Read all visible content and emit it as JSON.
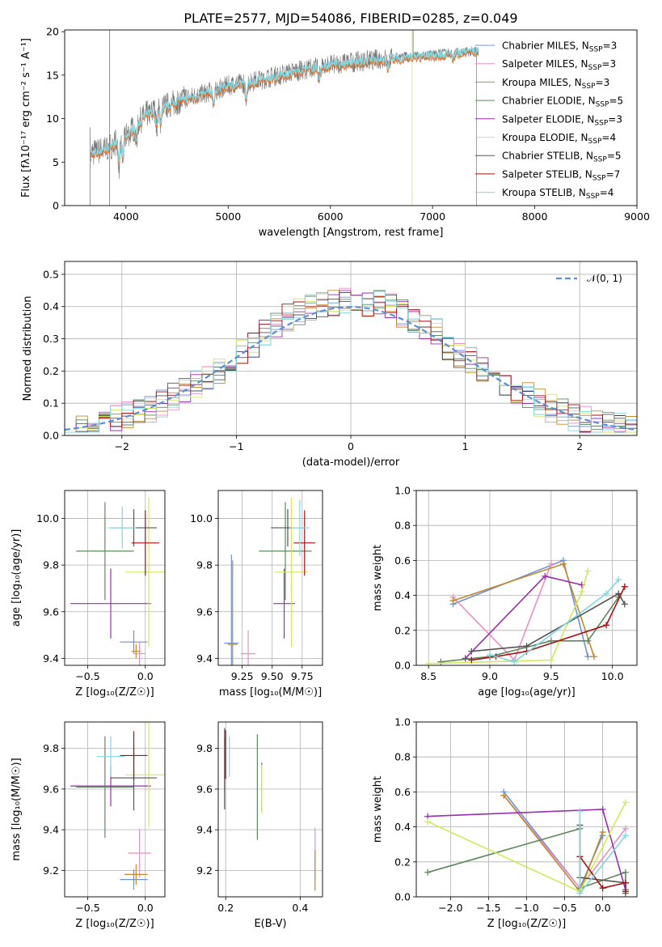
{
  "title": "PLATE=2577, MJD=54086, FIBERID=0285, z=0.049",
  "legend_series": [
    {
      "name": "Chabrier MILES, N",
      "sub": "SSP",
      "suffix": "=3",
      "color": "#6b93d6"
    },
    {
      "name": "Salpeter MILES, N",
      "sub": "SSP",
      "suffix": "=3",
      "color": "#e88fc8"
    },
    {
      "name": "Kroupa MILES, N",
      "sub": "SSP",
      "suffix": "=3",
      "color": "#c08a30"
    },
    {
      "name": "Chabrier ELODIE, N",
      "sub": "SSP",
      "suffix": "=5",
      "color": "#5c8a5c"
    },
    {
      "name": "Salpeter ELODIE, N",
      "sub": "SSP",
      "suffix": "=3",
      "color": "#9a2fb0"
    },
    {
      "name": "Kroupa ELODIE, N",
      "sub": "SSP",
      "suffix": "=4",
      "color": "#d4e85a"
    },
    {
      "name": "Chabrier STELIB, N",
      "sub": "SSP",
      "suffix": "=5",
      "color": "#555555"
    },
    {
      "name": "Salpeter STELIB, N",
      "sub": "SSP",
      "suffix": "=7",
      "color": "#aa1111"
    },
    {
      "name": "Kroupa STELIB, N",
      "sub": "SSP",
      "suffix": "=4",
      "color": "#80d8e0"
    }
  ],
  "chart_data": [
    {
      "id": "spectrum",
      "type": "line",
      "xlabel": "wavelength [Angstrom, rest frame]",
      "ylabel": "Flux [fλ10⁻¹⁷ erg cm⁻² s⁻¹ A⁻¹]",
      "xlim": [
        3400,
        9000
      ],
      "ylim": [
        0,
        20.2
      ],
      "xticks": [
        "4000",
        "5000",
        "6000",
        "7000",
        "8000",
        "9000"
      ],
      "yticks": [
        "0",
        "5",
        "10",
        "15",
        "20"
      ],
      "data_color": "#777777",
      "model_color": "#80d8e0",
      "model2_color": "#e07030",
      "continuum": {
        "x": [
          3650,
          3800,
          4000,
          4200,
          4500,
          4800,
          5000,
          5200,
          5500,
          5800,
          6000,
          6300,
          6600,
          6900,
          7200,
          7450
        ],
        "y": [
          6.0,
          6.5,
          8.0,
          10.5,
          12.0,
          13.0,
          13.8,
          14.2,
          15.0,
          15.8,
          16.2,
          16.6,
          17.0,
          17.2,
          17.6,
          17.8
        ]
      },
      "data_xmax": 7450,
      "model_xmax": 7430
    },
    {
      "id": "residuals",
      "type": "histogram",
      "xlabel": "(data-model)/error",
      "ylabel": "Normed distribution",
      "xlim": [
        -2.5,
        2.5
      ],
      "ylim": [
        0,
        0.54
      ],
      "xticks": [
        "−2",
        "−1",
        "0",
        "1",
        "2"
      ],
      "yticks": [
        "0.0",
        "0.1",
        "0.2",
        "0.3",
        "0.4",
        "0.5"
      ],
      "bin_width": 0.1,
      "legend": "𝒩(0, 1)",
      "gaussian_color": "#5b8fd9"
    },
    {
      "id": "age_vs_Z",
      "type": "errorbar",
      "xlabel": "Z [log₁₀(Z/Z☉)]",
      "ylabel": "age  [log₁₀(age/yr)]",
      "xlim": [
        -0.7,
        0.17
      ],
      "ylim": [
        9.37,
        10.12
      ],
      "xticks": [
        "−0.5",
        "0.0"
      ],
      "yticks": [
        "9.4",
        "9.6",
        "9.8",
        "10.0"
      ],
      "points": [
        {
          "x": -0.1,
          "y": 9.47,
          "xerr": 0.12,
          "yerr": 0.05,
          "c": 0
        },
        {
          "x": -0.05,
          "y": 9.42,
          "xerr": 0.05,
          "yerr": 0.05,
          "c": 1
        },
        {
          "x": -0.08,
          "y": 9.43,
          "xerr": 0.04,
          "yerr": 0.03,
          "c": 2
        },
        {
          "x": -0.35,
          "y": 9.86,
          "xerr": 0.25,
          "yerr": 0.21,
          "c": 3
        },
        {
          "x": -0.3,
          "y": 9.635,
          "xerr": 0.35,
          "yerr": 0.15,
          "c": 4
        },
        {
          "x": 0.03,
          "y": 9.77,
          "xerr": 0.2,
          "yerr": 0.32,
          "c": 5
        },
        {
          "x": -0.1,
          "y": 9.96,
          "xerr": 0.2,
          "yerr": 0.08,
          "c": 6
        },
        {
          "x": 0.0,
          "y": 9.895,
          "xerr": 0.12,
          "yerr": 0.14,
          "c": 7
        },
        {
          "x": -0.2,
          "y": 9.96,
          "xerr": 0.12,
          "yerr": 0.09,
          "c": 8
        }
      ]
    },
    {
      "id": "age_vs_mass",
      "type": "errorbar",
      "xlabel": "mass [log₁₀(M/M☉)]",
      "ylabel": "",
      "xlim": [
        9.05,
        9.92
      ],
      "ylim": [
        9.37,
        10.12
      ],
      "xticks": [
        "9.25",
        "9.50",
        "9.75"
      ],
      "yticks": [
        "9.4",
        "9.6",
        "9.8",
        "10.0"
      ],
      "points": [
        {
          "x": 9.16,
          "y": 9.465,
          "xerr": 0.06,
          "yerr": 0.38,
          "c": 0
        },
        {
          "x": 9.3,
          "y": 9.42,
          "xerr": 0.06,
          "yerr": 0.1,
          "c": 1
        },
        {
          "x": 9.17,
          "y": 9.46,
          "xerr": 0.04,
          "yerr": 0.36,
          "c": 2
        },
        {
          "x": 9.61,
          "y": 9.86,
          "xerr": 0.22,
          "yerr": 0.21,
          "c": 3
        },
        {
          "x": 9.6,
          "y": 9.635,
          "xerr": 0.09,
          "yerr": 0.15,
          "c": 4
        },
        {
          "x": 9.66,
          "y": 9.77,
          "xerr": 0.14,
          "yerr": 0.32,
          "c": 5
        },
        {
          "x": 9.63,
          "y": 9.96,
          "xerr": 0.14,
          "yerr": 0.08,
          "c": 6
        },
        {
          "x": 9.77,
          "y": 9.895,
          "xerr": 0.09,
          "yerr": 0.14,
          "c": 7
        },
        {
          "x": 9.73,
          "y": 9.96,
          "xerr": 0.08,
          "yerr": 0.12,
          "c": 8
        }
      ]
    },
    {
      "id": "massweight_vs_age",
      "type": "line",
      "xlabel": "age  [log₁₀(age/yr)]",
      "ylabel": "mass weight",
      "xlim": [
        8.4,
        10.2
      ],
      "ylim": [
        0,
        1
      ],
      "xticks": [
        "8.5",
        "9.0",
        "9.5",
        "10.0"
      ],
      "yticks": [
        "0.0",
        "0.2",
        "0.4",
        "0.6",
        "0.8",
        "1.0"
      ],
      "series": [
        {
          "c": 0,
          "x": [
            8.7,
            9.6,
            9.8
          ],
          "y": [
            0.35,
            0.6,
            0.05
          ]
        },
        {
          "c": 1,
          "x": [
            8.7,
            9.2,
            9.5
          ],
          "y": [
            0.39,
            0.03,
            0.58
          ]
        },
        {
          "c": 2,
          "x": [
            8.7,
            9.6,
            9.85
          ],
          "y": [
            0.37,
            0.58,
            0.05
          ]
        },
        {
          "c": 3,
          "x": [
            8.6,
            9.0,
            9.5,
            9.8,
            10.05
          ],
          "y": [
            0.02,
            0.05,
            0.14,
            0.14,
            0.39
          ]
        },
        {
          "c": 4,
          "x": [
            8.8,
            9.45,
            9.75
          ],
          "y": [
            0.04,
            0.51,
            0.46
          ]
        },
        {
          "c": 5,
          "x": [
            8.5,
            9.5,
            9.75,
            9.8
          ],
          "y": [
            0.01,
            0.03,
            0.42,
            0.54
          ]
        },
        {
          "c": 6,
          "x": [
            8.85,
            9.3,
            10.05,
            10.1
          ],
          "y": [
            0.08,
            0.11,
            0.41,
            0.35
          ]
        },
        {
          "c": 7,
          "x": [
            8.85,
            9.05,
            9.3,
            9.95,
            10.1
          ],
          "y": [
            0.03,
            0.05,
            0.08,
            0.23,
            0.45
          ]
        },
        {
          "c": 8,
          "x": [
            9.0,
            9.2,
            9.95,
            10.05
          ],
          "y": [
            0.06,
            0.02,
            0.41,
            0.49
          ]
        }
      ]
    },
    {
      "id": "mass_vs_Z",
      "type": "errorbar",
      "xlabel": "Z [log₁₀(Z/Z☉)]",
      "ylabel": "mass [log₁₀(M/M☉)]",
      "xlim": [
        -0.7,
        0.17
      ],
      "ylim": [
        9.07,
        9.93
      ],
      "xticks": [
        "−0.5",
        "0.0"
      ],
      "yticks": [
        "9.2",
        "9.4",
        "9.6",
        "9.8"
      ],
      "points": [
        {
          "x": -0.1,
          "y": 9.155,
          "xerr": 0.12,
          "yerr": 0.05,
          "c": 0
        },
        {
          "x": -0.05,
          "y": 9.285,
          "xerr": 0.1,
          "yerr": 0.12,
          "c": 1
        },
        {
          "x": -0.08,
          "y": 9.18,
          "xerr": 0.1,
          "yerr": 0.05,
          "c": 2
        },
        {
          "x": -0.35,
          "y": 9.61,
          "xerr": 0.25,
          "yerr": 0.25,
          "c": 3
        },
        {
          "x": -0.3,
          "y": 9.615,
          "xerr": 0.35,
          "yerr": 0.1,
          "c": 4
        },
        {
          "x": 0.03,
          "y": 9.67,
          "xerr": 0.2,
          "yerr": 0.26,
          "c": 5
        },
        {
          "x": -0.1,
          "y": 9.655,
          "xerr": 0.2,
          "yerr": 0.16,
          "c": 6
        },
        {
          "x": -0.1,
          "y": 9.765,
          "xerr": 0.12,
          "yerr": 0.12,
          "c": 7
        },
        {
          "x": -0.3,
          "y": 9.76,
          "xerr": 0.12,
          "yerr": 0.1,
          "c": 8
        }
      ]
    },
    {
      "id": "mass_vs_EBV",
      "type": "errorbar",
      "xlabel": "E(B-V)",
      "ylabel": "",
      "xlim": [
        0.18,
        0.46
      ],
      "ylim": [
        9.07,
        9.93
      ],
      "xticks": [
        "0.2",
        "0.4"
      ],
      "yticks": [
        "9.2",
        "9.4",
        "9.6",
        "9.8"
      ],
      "points": [
        {
          "x": 0.197,
          "y": 9.72,
          "xerr": 0,
          "yerr": 0.13,
          "c": 0
        },
        {
          "x": 0.44,
          "y": 9.28,
          "xerr": 0,
          "yerr": 0.13,
          "c": 1
        },
        {
          "x": 0.44,
          "y": 9.2,
          "xerr": 0,
          "yerr": 0.1,
          "c": 2
        },
        {
          "x": 0.285,
          "y": 9.61,
          "xerr": 0,
          "yerr": 0.26,
          "c": 3
        },
        {
          "x": 0.297,
          "y": 9.61,
          "xerr": 0,
          "yerr": 0.12,
          "c": 4
        },
        {
          "x": 0.297,
          "y": 9.6,
          "xerr": 0,
          "yerr": 0.12,
          "c": 5
        },
        {
          "x": 0.197,
          "y": 9.7,
          "xerr": 0,
          "yerr": 0.2,
          "c": 6
        },
        {
          "x": 0.2,
          "y": 9.77,
          "xerr": 0,
          "yerr": 0.12,
          "c": 7
        },
        {
          "x": 0.21,
          "y": 9.76,
          "xerr": 0,
          "yerr": 0.1,
          "c": 8
        }
      ]
    },
    {
      "id": "massweight_vs_Z",
      "type": "line",
      "xlabel": "Z [log₁₀(Z/Z☉)]",
      "ylabel": "mass weight",
      "xlim": [
        -2.45,
        0.45
      ],
      "ylim": [
        0,
        1
      ],
      "xticks": [
        "−2.0",
        "−1.5",
        "−1.0",
        "−0.5",
        "0.0"
      ],
      "yticks": [
        "0.0",
        "0.2",
        "0.4",
        "0.6",
        "0.8",
        "1.0"
      ],
      "series": [
        {
          "c": 0,
          "x": [
            -1.3,
            -0.3,
            0.0
          ],
          "y": [
            0.6,
            0.05,
            0.35
          ]
        },
        {
          "c": 1,
          "x": [
            -1.3,
            -0.3,
            0.3
          ],
          "y": [
            0.58,
            0.05,
            0.39
          ]
        },
        {
          "c": 2,
          "x": [
            -1.3,
            -0.3,
            0.0
          ],
          "y": [
            0.58,
            0.03,
            0.37
          ]
        },
        {
          "c": 3,
          "x": [
            -2.3,
            -0.3,
            -0.3,
            0.3,
            0.3
          ],
          "y": [
            0.14,
            0.39,
            0.05,
            0.14,
            0.02
          ]
        },
        {
          "c": 4,
          "x": [
            -2.3,
            0.0,
            0.3
          ],
          "y": [
            0.46,
            0.5,
            0.04
          ]
        },
        {
          "c": 5,
          "x": [
            -2.3,
            -0.3,
            0.3
          ],
          "y": [
            0.43,
            0.03,
            0.54
          ]
        },
        {
          "c": 6,
          "x": [
            -0.3,
            -0.3,
            0.3
          ],
          "y": [
            0.41,
            0.11,
            0.08
          ]
        },
        {
          "c": 7,
          "x": [
            -0.3,
            0.0,
            0.3,
            0.3
          ],
          "y": [
            0.23,
            0.05,
            0.08,
            0.03
          ]
        },
        {
          "c": 8,
          "x": [
            -0.3,
            -0.3,
            0.3
          ],
          "y": [
            0.49,
            0.02,
            0.35
          ]
        }
      ]
    }
  ]
}
